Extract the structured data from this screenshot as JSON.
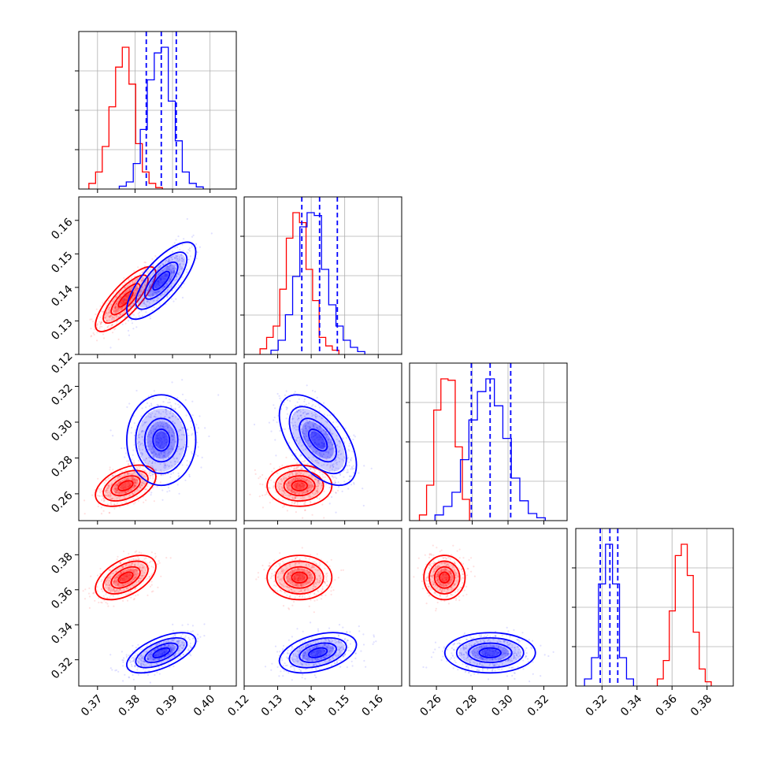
{
  "chart_data": {
    "type": "corner",
    "title": "",
    "axis_labels": [
      "",
      "",
      "",
      ""
    ],
    "colors": {
      "red": "#ff0000",
      "blue": "#0000ff"
    },
    "grid": true,
    "legend": "none",
    "ranges": [
      [
        0.365,
        0.407
      ],
      [
        0.12,
        0.167
      ],
      [
        0.245,
        0.333
      ],
      [
        0.305,
        0.395
      ]
    ],
    "ticks": [
      [
        "0.37",
        "0.38",
        "0.39",
        "0.40"
      ],
      [
        "0.12",
        "0.13",
        "0.14",
        "0.15",
        "0.16"
      ],
      [
        "0.26",
        "0.28",
        "0.30",
        "0.32"
      ],
      [
        "0.32",
        "0.34",
        "0.36",
        "0.38"
      ]
    ],
    "series": [
      {
        "color": "#ff0000",
        "means": [
          0.3775,
          0.1365,
          0.2645,
          0.367
        ],
        "stds": [
          0.0035,
          0.0042,
          0.005,
          0.0055
        ],
        "correlations": {
          "0-1": 0.8,
          "0-2": 0.45,
          "0-3": 0.5,
          "1-2": 0.0,
          "1-3": 0.0,
          "2-3": 0.0
        },
        "histograms": [
          [
            0.04,
            0.12,
            0.3,
            0.58,
            0.86,
            1.0,
            0.74,
            0.32,
            0.12,
            0.04,
            0.01
          ],
          [
            0.04,
            0.12,
            0.2,
            0.46,
            0.82,
            1.0,
            0.93,
            0.6,
            0.38,
            0.12,
            0.06,
            0.03
          ],
          [
            0.04,
            0.25,
            0.78,
            1.0,
            0.99,
            0.52,
            0.15
          ],
          [
            0.05,
            0.18,
            0.53,
            0.92,
            1.0,
            0.78,
            0.38,
            0.12,
            0.03
          ]
        ]
      },
      {
        "color": "#0000ff",
        "means": [
          0.387,
          0.142,
          0.29,
          0.324
        ],
        "stds": [
          0.004,
          0.005,
          0.011,
          0.005
        ],
        "correlations": {
          "0-1": 0.75,
          "0-2": 0.0,
          "0-3": 0.6,
          "1-2": -0.55,
          "1-3": 0.4,
          "2-3": 0.0
        },
        "histograms": [
          [
            0.02,
            0.05,
            0.18,
            0.42,
            0.77,
            0.96,
            1.0,
            0.62,
            0.34,
            0.12,
            0.04,
            0.015
          ],
          [
            0.03,
            0.1,
            0.28,
            0.55,
            0.9,
            1.0,
            0.98,
            0.6,
            0.35,
            0.2,
            0.1,
            0.05,
            0.02
          ],
          [
            0.04,
            0.1,
            0.2,
            0.43,
            0.71,
            0.91,
            1.0,
            0.81,
            0.58,
            0.3,
            0.14,
            0.05,
            0.02
          ],
          [
            0.05,
            0.2,
            0.72,
            1.0,
            0.72,
            0.2,
            0.05
          ]
        ],
        "quantile_lines": [
          [
            0.383,
            0.387,
            0.391
          ],
          [
            0.1372,
            0.1425,
            0.1478
          ],
          [
            0.2795,
            0.29,
            0.3015
          ],
          [
            0.319,
            0.3245,
            0.329
          ]
        ]
      }
    ]
  }
}
